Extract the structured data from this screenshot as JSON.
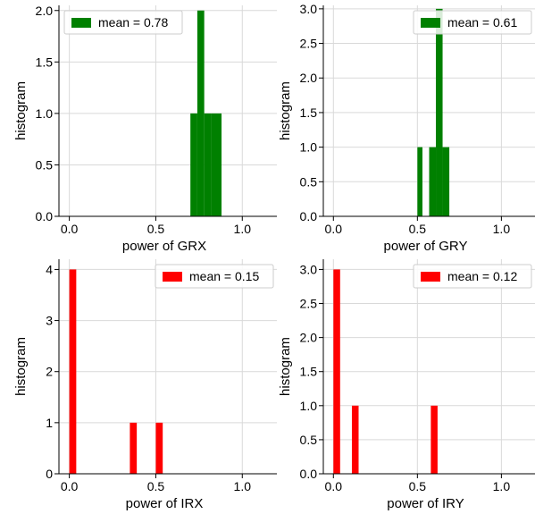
{
  "chart_data": [
    {
      "type": "bar",
      "xlabel": "power of GRX",
      "ylabel": "histogram",
      "xlim": [
        -0.06,
        1.2
      ],
      "ylim": [
        0,
        2.05
      ],
      "xticks": [
        0.0,
        0.5,
        1.0
      ],
      "xtick_labels": [
        "0.0",
        "0.5",
        "1.0"
      ],
      "yticks": [
        0,
        0.5,
        1.0,
        1.5,
        2.0
      ],
      "ytick_labels": [
        "0.0",
        "0.5",
        "1.0",
        "1.5",
        "2.0"
      ],
      "grid": true,
      "color": "#008000",
      "bins": [
        {
          "x0": 0.7,
          "x1": 0.74,
          "value": 1
        },
        {
          "x0": 0.74,
          "x1": 0.78,
          "value": 2
        },
        {
          "x0": 0.78,
          "x1": 0.82,
          "value": 1
        },
        {
          "x0": 0.82,
          "x1": 0.88,
          "value": 1
        }
      ],
      "legend": {
        "label": "mean = 0.78",
        "placement": "upper-left"
      }
    },
    {
      "type": "bar",
      "xlabel": "power of GRY",
      "ylabel": "histogram",
      "xlim": [
        -0.06,
        1.2
      ],
      "ylim": [
        0,
        3.05
      ],
      "xticks": [
        0.0,
        0.5,
        1.0
      ],
      "xtick_labels": [
        "0.0",
        "0.5",
        "1.0"
      ],
      "yticks": [
        0,
        0.5,
        1.0,
        1.5,
        2.0,
        2.5,
        3.0
      ],
      "ytick_labels": [
        "0.0",
        "0.5",
        "1.0",
        "1.5",
        "2.0",
        "2.5",
        "3.0"
      ],
      "grid": true,
      "color": "#008000",
      "bins": [
        {
          "x0": 0.5,
          "x1": 0.53,
          "value": 1
        },
        {
          "x0": 0.57,
          "x1": 0.61,
          "value": 1
        },
        {
          "x0": 0.61,
          "x1": 0.65,
          "value": 3
        },
        {
          "x0": 0.65,
          "x1": 0.69,
          "value": 1
        }
      ],
      "legend": {
        "label": "mean = 0.61",
        "placement": "upper-right"
      }
    },
    {
      "type": "bar",
      "xlabel": "power of IRX",
      "ylabel": "histogram",
      "xlim": [
        -0.06,
        1.2
      ],
      "ylim": [
        0,
        4.2
      ],
      "xticks": [
        0.0,
        0.5,
        1.0
      ],
      "xtick_labels": [
        "0.0",
        "0.5",
        "1.0"
      ],
      "yticks": [
        0,
        1,
        2,
        3,
        4
      ],
      "ytick_labels": [
        "0",
        "1",
        "2",
        "3",
        "4"
      ],
      "grid": true,
      "color": "#ff0000",
      "bins": [
        {
          "x0": 0.0,
          "x1": 0.04,
          "value": 4
        },
        {
          "x0": 0.35,
          "x1": 0.39,
          "value": 1
        },
        {
          "x0": 0.5,
          "x1": 0.54,
          "value": 1
        }
      ],
      "legend": {
        "label": "mean = 0.15",
        "placement": "upper-right"
      }
    },
    {
      "type": "bar",
      "xlabel": "power of IRY",
      "ylabel": "histogram",
      "xlim": [
        -0.06,
        1.2
      ],
      "ylim": [
        0,
        3.15
      ],
      "xticks": [
        0.0,
        0.5,
        1.0
      ],
      "xtick_labels": [
        "0.0",
        "0.5",
        "1.0"
      ],
      "yticks": [
        0,
        0.5,
        1.0,
        1.5,
        2.0,
        2.5,
        3.0
      ],
      "ytick_labels": [
        "0.0",
        "0.5",
        "1.0",
        "1.5",
        "2.0",
        "2.5",
        "3.0"
      ],
      "grid": true,
      "color": "#ff0000",
      "bins": [
        {
          "x0": 0.0,
          "x1": 0.04,
          "value": 3
        },
        {
          "x0": 0.11,
          "x1": 0.15,
          "value": 1
        },
        {
          "x0": 0.58,
          "x1": 0.62,
          "value": 1
        }
      ],
      "legend": {
        "label": "mean = 0.12",
        "placement": "upper-right"
      }
    }
  ]
}
